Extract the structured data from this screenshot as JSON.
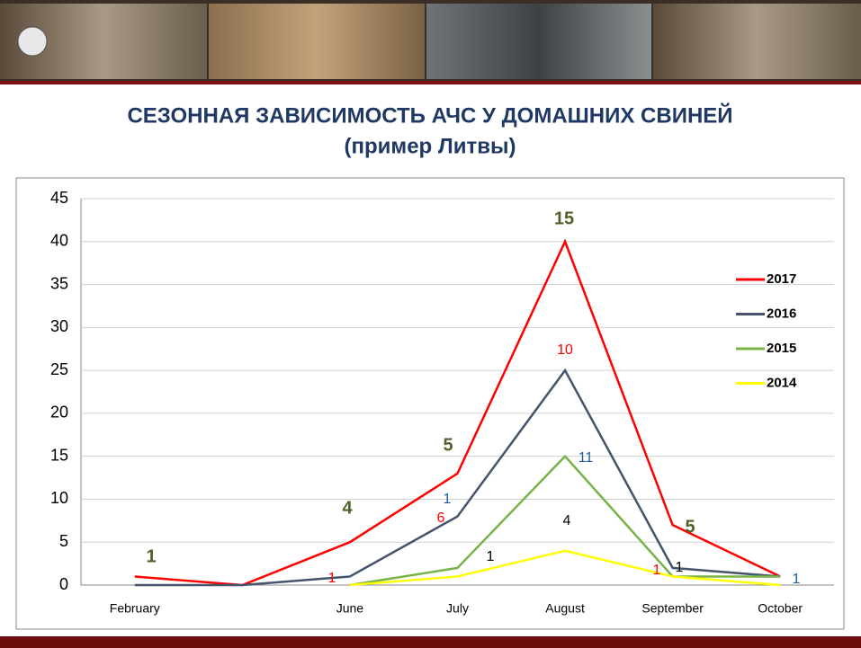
{
  "chart_data": {
    "type": "line",
    "title": "СЕЗОННАЯ ЗАВИСИМОСТЬ АЧС У ДОМАШНИХ СВИНЕЙ",
    "subtitle": "(пример Литвы)",
    "categories": [
      "February",
      null,
      "June",
      "July",
      "August",
      "September",
      "October"
    ],
    "series": [
      {
        "name": "2017",
        "color": "#ff0000",
        "values": [
          1,
          0,
          5,
          13,
          40,
          7,
          1
        ]
      },
      {
        "name": "2016",
        "color": "#44546a",
        "values": [
          0,
          0,
          1,
          8,
          25,
          2,
          1
        ]
      },
      {
        "name": "2015",
        "color": "#77b347",
        "values": [
          null,
          null,
          0,
          2,
          15,
          1,
          1
        ]
      },
      {
        "name": "2014",
        "color": "#ffff00",
        "values": [
          null,
          null,
          0,
          1,
          4,
          1,
          0
        ]
      }
    ],
    "ylim": [
      0,
      45
    ],
    "yticks": [
      0,
      5,
      10,
      15,
      20,
      25,
      30,
      35,
      40,
      45
    ],
    "grid": true,
    "legend": "right",
    "annotations": [
      {
        "text": "1",
        "color": "#4f6228"
      },
      {
        "text": "4",
        "color": "#4f6228"
      },
      {
        "text": "5",
        "color": "#4f6228"
      },
      {
        "text": "15",
        "color": "#4f6228"
      },
      {
        "text": "5",
        "color": "#4f6228"
      },
      {
        "text": "1",
        "color": "#ff0000"
      },
      {
        "text": "6",
        "color": "#ff0000"
      },
      {
        "text": "10",
        "color": "#ff0000"
      },
      {
        "text": "1",
        "color": "#ff0000"
      },
      {
        "text": "1",
        "color": "#1f5b9a"
      },
      {
        "text": "11",
        "color": "#1f5b9a"
      },
      {
        "text": "1",
        "color": "#1f5b9a"
      },
      {
        "text": "1",
        "color": "#000000"
      },
      {
        "text": "4",
        "color": "#000000"
      },
      {
        "text": "1",
        "color": "#000000"
      }
    ]
  }
}
